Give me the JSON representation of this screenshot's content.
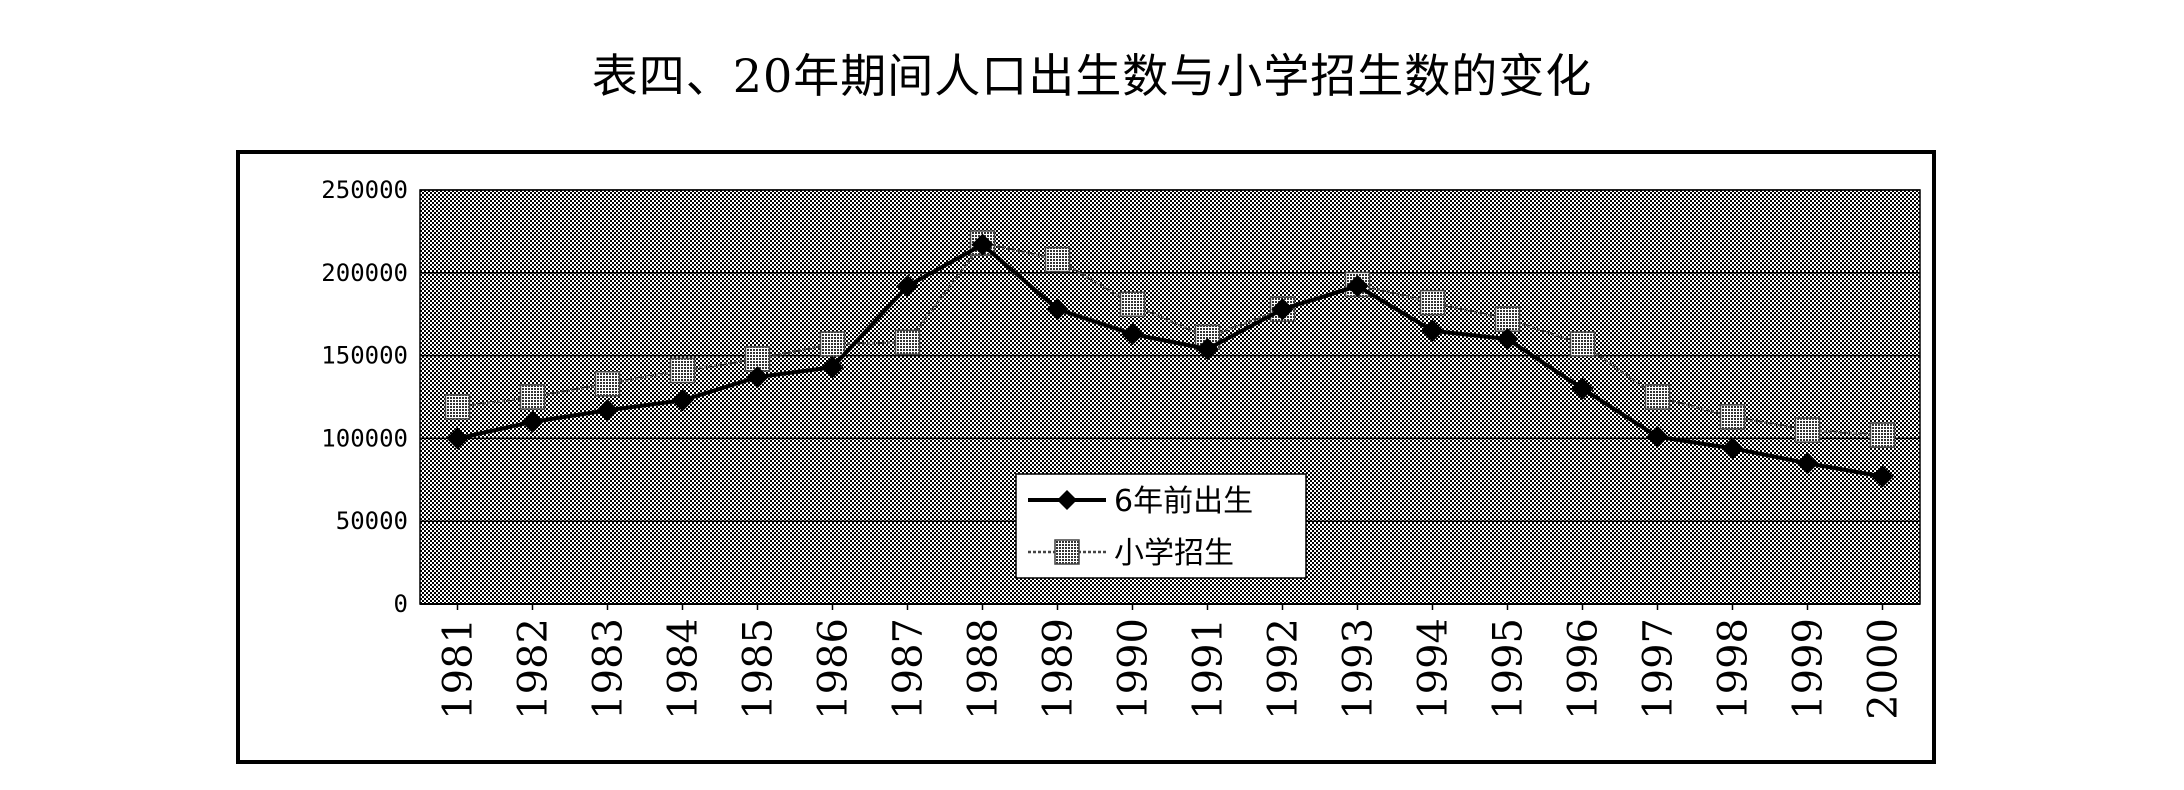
{
  "title": "表四、20年期间人口出生数与小学招生数的变化",
  "chart_data": {
    "type": "line",
    "title": "",
    "xlabel": "",
    "ylabel": "",
    "x": [
      "1981",
      "1982",
      "1983",
      "1984",
      "1985",
      "1986",
      "1987",
      "1988",
      "1989",
      "1990",
      "1991",
      "1992",
      "1993",
      "1994",
      "1995",
      "1996",
      "1997",
      "1998",
      "1999",
      "2000"
    ],
    "ylim": [
      0,
      250000
    ],
    "yticks": [
      0,
      50000,
      100000,
      150000,
      200000,
      250000
    ],
    "grid": true,
    "legend_position": "center",
    "series": [
      {
        "name": "6年前出生",
        "marker": "diamond",
        "color": "#000000",
        "values": [
          100000,
          110000,
          117000,
          123000,
          137000,
          143000,
          192000,
          217000,
          178000,
          163000,
          154000,
          178000,
          192000,
          165000,
          160000,
          130000,
          101000,
          94000,
          85000,
          77000
        ]
      },
      {
        "name": "小学招生",
        "marker": "square",
        "color": "#555555",
        "values": [
          119000,
          125000,
          133000,
          141000,
          148000,
          157000,
          158000,
          218000,
          208000,
          181000,
          161000,
          178000,
          193000,
          182000,
          172000,
          157000,
          125000,
          113000,
          105000,
          102000
        ]
      }
    ]
  }
}
